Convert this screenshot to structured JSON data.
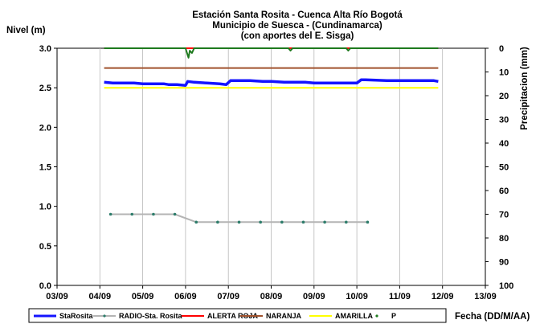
{
  "chart_data": {
    "type": "line",
    "title_lines": [
      "Estación Santa Rosita - Cuenca Alta Río Bogotá",
      "Municipio de Suesca - (Cundinamarca)",
      "(con aportes del  E. Sisga)"
    ],
    "ylabel": "Nivel (m)",
    "y2label": "Precipitacion (mm)",
    "xlabel": "Fecha (DD/M/AA)",
    "x_ticks": [
      "03/09",
      "04/09",
      "05/09",
      "06/09",
      "07/09",
      "08/09",
      "09/09",
      "10/09",
      "11/09",
      "12/09",
      "13/09"
    ],
    "y_ticks": [
      "0.0",
      "0.5",
      "1.0",
      "1.5",
      "2.0",
      "2.5",
      "3.0"
    ],
    "y2_ticks": [
      "100",
      "90",
      "80",
      "70",
      "60",
      "50",
      "40",
      "30",
      "20",
      "10",
      "0"
    ],
    "xlim": [
      3,
      13
    ],
    "ylim": [
      0,
      3.0
    ],
    "y2lim": [
      0,
      100
    ],
    "y2_inverted": true,
    "grid": "vertical",
    "legend_position": "bottom",
    "colors": {
      "starosita": "#1414ff",
      "radio": "#b4b4b4",
      "radio_marker": "#2e7d6b",
      "alerta_roja": "#ff0000",
      "naranja": "#a0522d",
      "amarilla": "#ffff00",
      "precip": "#1e7a1e"
    },
    "series": [
      {
        "key": "starosita",
        "name": "StaRosita",
        "x": [
          4.1,
          4.3,
          4.8,
          5.0,
          5.5,
          5.6,
          5.8,
          6.0,
          6.05,
          6.2,
          6.5,
          6.8,
          6.95,
          7.05,
          7.5,
          7.8,
          8.0,
          8.3,
          8.8,
          9.0,
          9.5,
          9.8,
          10.0,
          10.1,
          10.2,
          10.7,
          11.0,
          11.5,
          11.8,
          11.9
        ],
        "values": [
          2.57,
          2.56,
          2.56,
          2.55,
          2.55,
          2.54,
          2.54,
          2.53,
          2.58,
          2.57,
          2.56,
          2.55,
          2.54,
          2.59,
          2.59,
          2.58,
          2.58,
          2.57,
          2.57,
          2.56,
          2.56,
          2.56,
          2.56,
          2.6,
          2.6,
          2.59,
          2.59,
          2.59,
          2.59,
          2.58
        ]
      },
      {
        "key": "radio",
        "name": "RADIO-Sta. Rosita",
        "x": [
          4.25,
          4.75,
          5.25,
          5.75,
          6.25,
          6.75,
          7.25,
          7.75,
          8.25,
          8.75,
          9.25,
          9.75,
          10.25
        ],
        "values": [
          0.9,
          0.9,
          0.9,
          0.9,
          0.8,
          0.8,
          0.8,
          0.8,
          0.8,
          0.8,
          0.8,
          0.8,
          0.8
        ]
      },
      {
        "key": "alerta_roja",
        "name": "ALERTA ROJA",
        "x": [
          4.1,
          11.9
        ],
        "values": [
          3.0,
          3.0
        ]
      },
      {
        "key": "naranja",
        "name": "NARANJA",
        "x": [
          4.1,
          11.9
        ],
        "values": [
          2.75,
          2.75
        ]
      },
      {
        "key": "amarilla",
        "name": "AMARILLA",
        "x": [
          4.1,
          11.9
        ],
        "values": [
          2.5,
          2.5
        ]
      },
      {
        "key": "precip",
        "name": "P",
        "axis": "y2",
        "x": [
          4.1,
          5.0,
          6.0,
          6.07,
          6.1,
          6.15,
          6.2,
          6.5,
          7.0,
          8.0,
          8.4,
          8.45,
          8.5,
          9.0,
          9.75,
          9.8,
          9.85,
          10.0,
          11.0,
          11.9
        ],
        "values": [
          0,
          0,
          0,
          4,
          1,
          2,
          0,
          0,
          0,
          0,
          0,
          1,
          0,
          0,
          0,
          1,
          0,
          0,
          0,
          0
        ]
      }
    ]
  }
}
